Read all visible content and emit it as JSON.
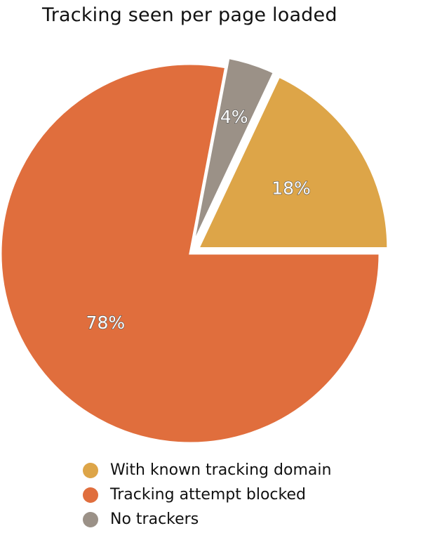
{
  "chart_data": {
    "type": "pie",
    "title": "Tracking seen per page loaded",
    "slices": [
      {
        "name": "With known tracking domain",
        "value": 18,
        "label": "18%",
        "color": "#dda548",
        "exploded": true
      },
      {
        "name": "Tracking attempt blocked",
        "value": 78,
        "label": "78%",
        "color": "#e06e3d",
        "exploded": false
      },
      {
        "name": "No trackers",
        "value": 4,
        "label": "4%",
        "color": "#9b9187",
        "exploded": true
      }
    ],
    "legend": {
      "placement": "bottom",
      "entries": [
        {
          "label": "With known tracking domain",
          "color": "#dda548"
        },
        {
          "label": "Tracking attempt blocked",
          "color": "#e06e3d"
        },
        {
          "label": "No trackers",
          "color": "#9b9187"
        }
      ]
    }
  }
}
